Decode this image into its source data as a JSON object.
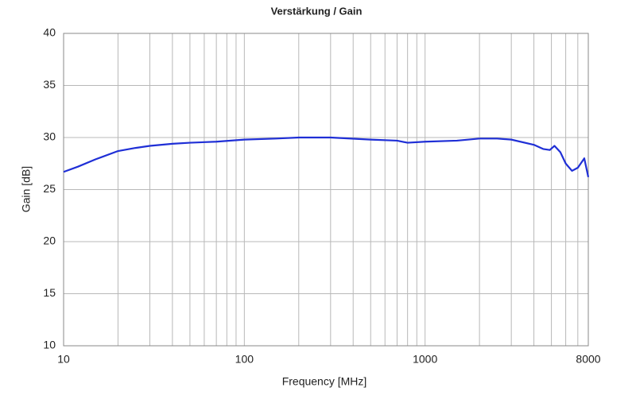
{
  "chart_data": {
    "type": "line",
    "title": "Verstärkung / Gain",
    "x_label": "Frequency [MHz]",
    "y_label": "Gain [dB]",
    "x_scale": "log",
    "grid": true,
    "xlim": [
      10,
      8000
    ],
    "xticks": [
      10,
      100,
      1000,
      8000
    ],
    "x_minor_grid": [
      20,
      30,
      40,
      50,
      60,
      70,
      80,
      90,
      200,
      300,
      400,
      500,
      600,
      700,
      800,
      900,
      2000,
      3000,
      4000,
      5000,
      6000,
      7000
    ],
    "ylim": [
      10,
      40
    ],
    "yticks": [
      10,
      15,
      20,
      25,
      30,
      35,
      40
    ],
    "series": [
      {
        "name": "Gain",
        "color": "#1f2fd6",
        "x": [
          10,
          12,
          15,
          20,
          25,
          30,
          40,
          50,
          70,
          100,
          150,
          200,
          300,
          500,
          700,
          800,
          1000,
          1500,
          2000,
          2500,
          3000,
          4000,
          4500,
          4900,
          5200,
          5600,
          6000,
          6500,
          7000,
          7600,
          8000
        ],
        "values": [
          26.7,
          27.2,
          27.9,
          28.7,
          29.0,
          29.2,
          29.4,
          29.5,
          29.6,
          29.8,
          29.9,
          30.0,
          30.0,
          29.8,
          29.7,
          29.5,
          29.6,
          29.7,
          29.9,
          29.9,
          29.8,
          29.3,
          28.9,
          28.8,
          29.2,
          28.6,
          27.5,
          26.8,
          27.1,
          28.0,
          26.2
        ]
      }
    ]
  }
}
